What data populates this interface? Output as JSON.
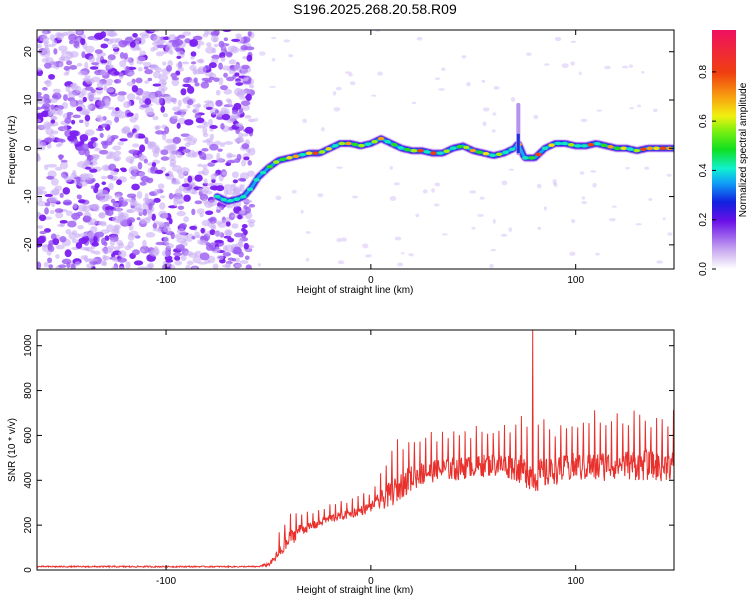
{
  "title": "S196.2025.268.20.58.R09",
  "colors": {
    "snr_line": "#e8302c",
    "axis": "#000000",
    "background": "#ffffff",
    "noise": "#8a3ef0"
  },
  "chart_data": [
    {
      "type": "heatmap",
      "name": "spectrogram",
      "xlabel": "Height of straight line (km)",
      "ylabel": "Frequency (Hz)",
      "xlim": [
        -163,
        148
      ],
      "ylim": [
        -25,
        24.5
      ],
      "xticks": [
        -100,
        0,
        100
      ],
      "xtick_labels": [
        "-100",
        "0",
        "100"
      ],
      "yticks": [
        -20,
        -10,
        0,
        10,
        20
      ],
      "ytick_labels": [
        "-20",
        "-10",
        "0",
        "10",
        "20"
      ],
      "noise_region_x": [
        -163,
        -58
      ],
      "signal_track": {
        "x": [
          -75,
          -70,
          -65,
          -62,
          -58,
          -55,
          -50,
          -45,
          -40,
          -35,
          -30,
          -25,
          -20,
          -15,
          -10,
          -5,
          0,
          5,
          10,
          15,
          20,
          25,
          30,
          35,
          40,
          45,
          50,
          55,
          60,
          65,
          70,
          72,
          75,
          80,
          85,
          90,
          95,
          100,
          105,
          110,
          115,
          120,
          125,
          130,
          135,
          140,
          145,
          148
        ],
        "freq": [
          -10,
          -11,
          -10.5,
          -10,
          -8,
          -6,
          -4,
          -2.5,
          -2,
          -1.5,
          -1,
          -1,
          0,
          1,
          1,
          0.5,
          1,
          2,
          1,
          0,
          -0.5,
          -0.5,
          -1,
          -1,
          0,
          0.5,
          -0.5,
          -1,
          -1.5,
          -1,
          0,
          1,
          -2,
          -2,
          0,
          1,
          1,
          0.5,
          0.5,
          1,
          0.5,
          0,
          0,
          -0.5,
          0,
          0,
          0,
          0
        ]
      },
      "spike": {
        "x": 72,
        "freq_range": [
          -1,
          9
        ]
      },
      "colorbar": {
        "label": "Normalized spectral amplitude",
        "range": [
          0,
          0.97
        ],
        "ticks": [
          0.0,
          0.2,
          0.4,
          0.6,
          0.8
        ],
        "tick_labels": [
          "0.0",
          "0.2",
          "0.4",
          "0.6",
          "0.8"
        ]
      }
    },
    {
      "type": "line",
      "name": "snr",
      "xlabel": "Height of straight line (km)",
      "ylabel": "SNR (10 * v/v)",
      "xlim": [
        -163,
        148
      ],
      "ylim": [
        0,
        1070
      ],
      "xticks": [
        -100,
        0,
        100
      ],
      "xtick_labels": [
        "-100",
        "0",
        "100"
      ],
      "yticks": [
        0,
        200,
        400,
        600,
        800,
        1000
      ],
      "ytick_labels": [
        "0",
        "200",
        "400",
        "600",
        "800",
        "1000"
      ],
      "envelope": {
        "x": [
          -163,
          -120,
          -80,
          -55,
          -50,
          -48,
          -45,
          -40,
          -35,
          -30,
          -20,
          -10,
          0,
          10,
          15,
          20,
          25,
          30,
          40,
          50,
          60,
          70,
          80,
          90,
          100,
          110,
          120,
          130,
          140,
          148
        ],
        "mean": [
          15,
          15,
          15,
          15,
          25,
          40,
          70,
          130,
          180,
          190,
          230,
          250,
          280,
          340,
          380,
          410,
          430,
          440,
          450,
          460,
          470,
          460,
          420,
          440,
          460,
          460,
          470,
          470,
          460,
          470
        ],
        "peak": [
          25,
          28,
          25,
          25,
          55,
          90,
          170,
          290,
          270,
          260,
          300,
          320,
          360,
          560,
          600,
          620,
          630,
          620,
          650,
          640,
          660,
          680,
          700,
          660,
          700,
          720,
          700,
          730,
          700,
          720
        ]
      },
      "max_spike": {
        "x": 79,
        "y": 1070
      }
    }
  ]
}
